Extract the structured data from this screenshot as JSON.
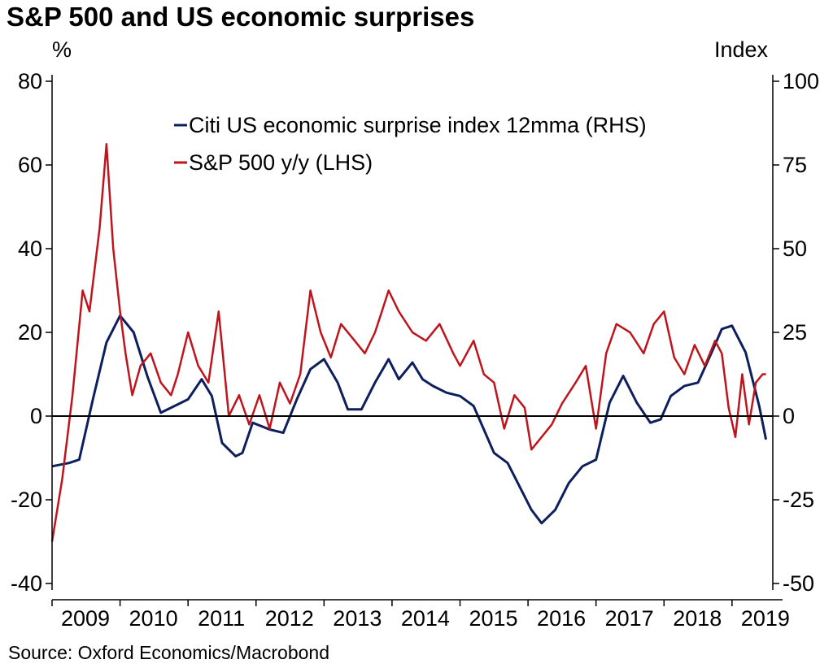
{
  "chart_data": {
    "type": "line",
    "title": "S&P 500 and US economic surprises",
    "source": "Source: Oxford Economics/Macrobond",
    "left_axis": {
      "unit": "%",
      "ylim": [
        -40,
        80
      ],
      "ticks": [
        -40,
        -20,
        0,
        20,
        40,
        60,
        80
      ],
      "tick_labels": [
        "-40",
        "-20",
        "0",
        "20",
        "40",
        "60",
        "80"
      ]
    },
    "right_axis": {
      "unit": "Index",
      "ylim": [
        -50,
        100
      ],
      "ticks": [
        -50,
        -25,
        0,
        25,
        50,
        75,
        100
      ],
      "tick_labels": [
        "-50",
        "-25",
        "0",
        "25",
        "50",
        "75",
        "100"
      ]
    },
    "xlim": [
      2009.0,
      2019.6
    ],
    "x_ticks": [
      2009,
      2010,
      2011,
      2012,
      2013,
      2014,
      2015,
      2016,
      2017,
      2018,
      2019
    ],
    "x_tick_labels": [
      "2009",
      "2010",
      "2011",
      "2012",
      "2013",
      "2014",
      "2015",
      "2016",
      "2017",
      "2018",
      "2019"
    ],
    "legend_position": "top-center",
    "series": [
      {
        "name": "Citi US economic surprise index 12mma (RHS)",
        "axis": "right",
        "color": "#0d1f5c",
        "x": [
          2009.0,
          2009.25,
          2009.4,
          2009.6,
          2009.8,
          2010.0,
          2010.2,
          2010.4,
          2010.6,
          2010.8,
          2011.0,
          2011.2,
          2011.35,
          2011.5,
          2011.7,
          2011.8,
          2011.95,
          2012.2,
          2012.4,
          2012.6,
          2012.8,
          2013.0,
          2013.2,
          2013.35,
          2013.55,
          2013.75,
          2013.95,
          2014.1,
          2014.3,
          2014.45,
          2014.6,
          2014.8,
          2015.0,
          2015.2,
          2015.35,
          2015.5,
          2015.7,
          2015.9,
          2016.05,
          2016.2,
          2016.4,
          2016.6,
          2016.8,
          2017.0,
          2017.2,
          2017.4,
          2017.6,
          2017.8,
          2017.95,
          2018.1,
          2018.3,
          2018.5,
          2018.7,
          2018.85,
          2019.0,
          2019.2,
          2019.4,
          2019.5
        ],
        "values": [
          -15,
          -14,
          -13,
          5,
          22,
          30,
          25,
          12,
          1,
          3,
          5,
          11,
          6,
          -8,
          -12,
          -11,
          -2,
          -4,
          -5,
          5,
          14,
          17,
          10,
          2,
          2,
          10,
          17,
          11,
          16,
          11,
          9,
          7,
          6,
          3,
          -4,
          -11,
          -14,
          -22,
          -28,
          -32,
          -28,
          -20,
          -15,
          -13,
          4,
          12,
          4,
          -2,
          -1,
          6,
          9,
          10,
          19,
          26,
          27,
          19,
          3,
          -7
        ]
      },
      {
        "name": "S&P 500 y/y (LHS)",
        "axis": "left",
        "color": "#c0141c",
        "x": [
          2009.0,
          2009.15,
          2009.3,
          2009.45,
          2009.55,
          2009.7,
          2009.8,
          2009.9,
          2010.0,
          2010.08,
          2010.18,
          2010.3,
          2010.45,
          2010.6,
          2010.75,
          2010.85,
          2011.0,
          2011.15,
          2011.3,
          2011.45,
          2011.6,
          2011.75,
          2011.9,
          2012.05,
          2012.2,
          2012.35,
          2012.5,
          2012.65,
          2012.8,
          2012.95,
          2013.1,
          2013.25,
          2013.45,
          2013.6,
          2013.75,
          2013.85,
          2013.95,
          2014.1,
          2014.3,
          2014.5,
          2014.7,
          2014.9,
          2015.0,
          2015.2,
          2015.35,
          2015.5,
          2015.65,
          2015.8,
          2015.95,
          2016.05,
          2016.2,
          2016.35,
          2016.5,
          2016.7,
          2016.85,
          2017.0,
          2017.15,
          2017.3,
          2017.5,
          2017.7,
          2017.85,
          2018.0,
          2018.15,
          2018.3,
          2018.45,
          2018.6,
          2018.75,
          2018.85,
          2018.95,
          2019.05,
          2019.15,
          2019.25,
          2019.35,
          2019.45,
          2019.5
        ],
        "values": [
          -30,
          -15,
          5,
          30,
          25,
          45,
          65,
          40,
          25,
          15,
          5,
          12,
          15,
          8,
          5,
          10,
          20,
          12,
          8,
          25,
          0,
          5,
          -2,
          5,
          -3,
          8,
          3,
          10,
          30,
          20,
          14,
          22,
          18,
          15,
          20,
          25,
          30,
          25,
          20,
          18,
          22,
          15,
          12,
          18,
          10,
          8,
          -3,
          5,
          2,
          -8,
          -5,
          -2,
          3,
          8,
          12,
          -3,
          15,
          22,
          20,
          15,
          22,
          25,
          14,
          10,
          17,
          12,
          18,
          15,
          2,
          -5,
          10,
          -2,
          8,
          10,
          10
        ]
      }
    ]
  }
}
